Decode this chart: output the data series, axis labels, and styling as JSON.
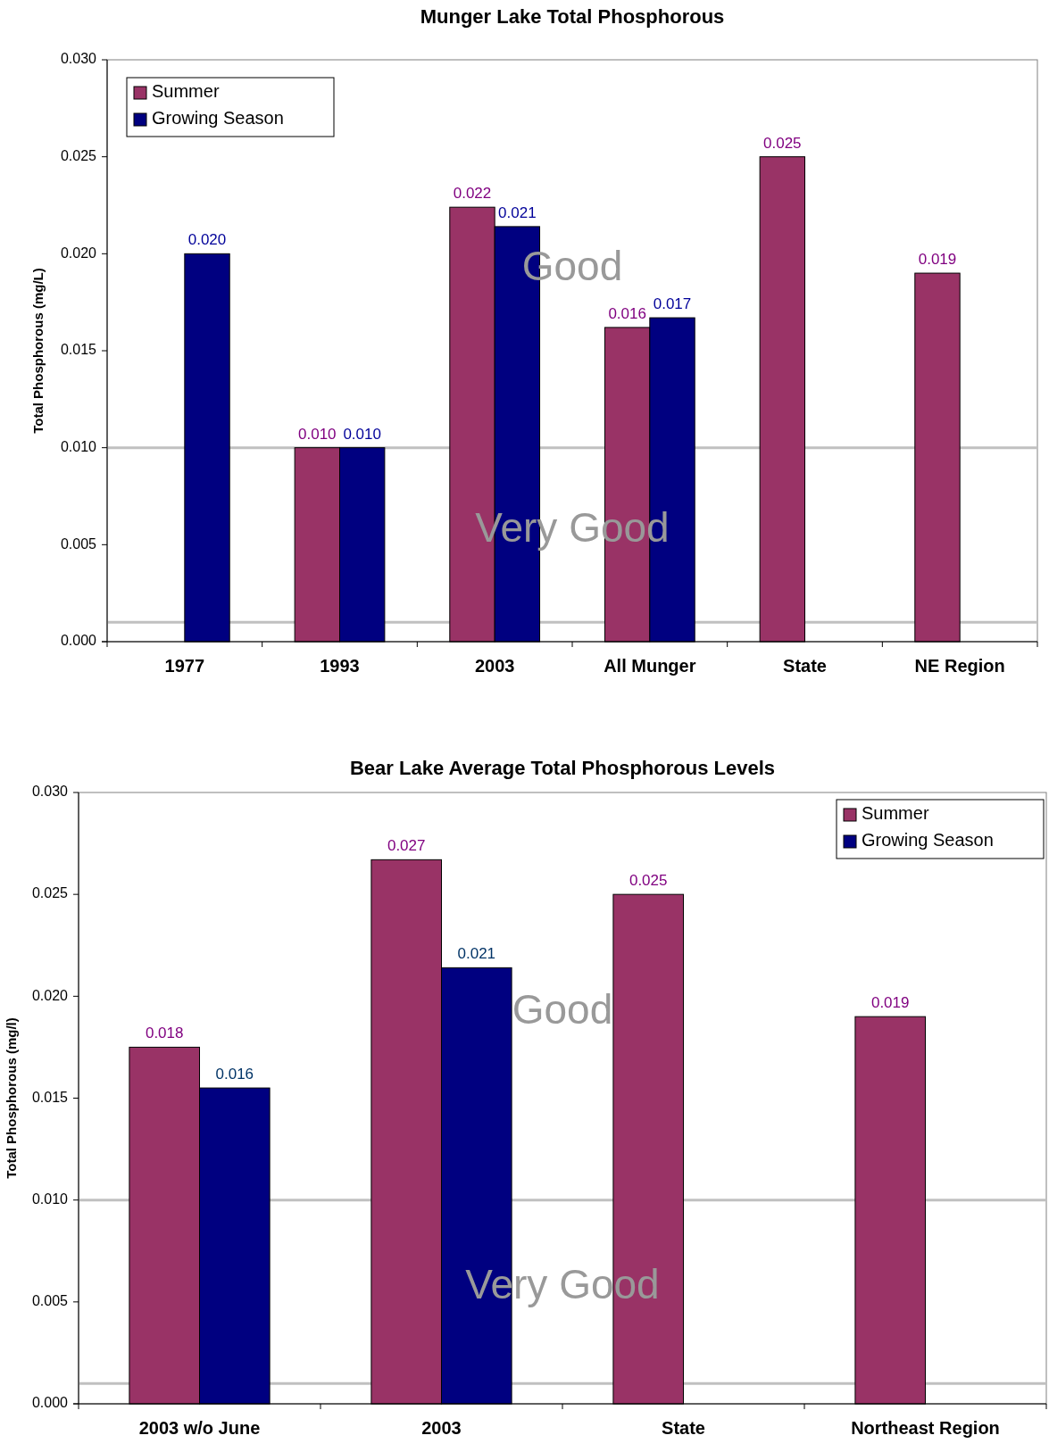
{
  "chart_data": [
    {
      "type": "bar",
      "title": "Munger Lake Total Phosphorous",
      "ylabel": "Total Phosphorous (mg/L)",
      "categories": [
        "1977",
        "1993",
        "2003",
        "All Munger",
        "State",
        "NE Region"
      ],
      "series": [
        {
          "name": "Summer",
          "color": "#993366",
          "values": [
            null,
            0.01,
            0.0224,
            0.0162,
            0.025,
            0.019
          ],
          "value_labels": [
            null,
            "0.010",
            "0.022",
            "0.016",
            "0.025",
            "0.019"
          ]
        },
        {
          "name": "Growing Season",
          "color": "#000080",
          "values": [
            0.02,
            0.01,
            0.0214,
            0.0167,
            null,
            null
          ],
          "value_labels": [
            "0.020",
            "0.010",
            "0.021",
            "0.017",
            null,
            null
          ]
        }
      ],
      "ylim": [
        0,
        0.03
      ],
      "yticks": [
        {
          "value": 0,
          "label": "0.000"
        },
        {
          "value": 0.005,
          "label": "0.005"
        },
        {
          "value": 0.01,
          "label": "0.010"
        },
        {
          "value": 0.015,
          "label": "0.015"
        },
        {
          "value": 0.02,
          "label": "0.020"
        },
        {
          "value": 0.025,
          "label": "0.025"
        },
        {
          "value": 0.03,
          "label": "0.030"
        }
      ],
      "ref_lines": [
        {
          "axis": "y",
          "value": 0.01,
          "color": "#c0c0c0"
        },
        {
          "axis": "y",
          "value": 0.001,
          "color": "#c0c0c0"
        }
      ],
      "annotations": [
        "Good",
        "Very Good"
      ],
      "legend": "top left",
      "grid": false
    },
    {
      "type": "bar",
      "title": "Bear Lake Average Total Phosphorous Levels",
      "ylabel": "Total Phosphorous (mg/l)",
      "categories": [
        "2003 w/o June",
        "2003",
        "State",
        "Northeast Region"
      ],
      "series": [
        {
          "name": "Summer",
          "color": "#993366",
          "values": [
            0.0175,
            0.0267,
            0.025,
            0.019
          ],
          "value_labels": [
            "0.018",
            "0.027",
            "0.025",
            "0.019"
          ]
        },
        {
          "name": "Growing Season",
          "color": "#000080",
          "values": [
            0.0155,
            0.0214,
            null,
            null
          ],
          "value_labels": [
            "0.016",
            "0.021",
            null,
            null
          ]
        }
      ],
      "ylim": [
        0,
        0.03
      ],
      "yticks": [
        {
          "value": 0,
          "label": "0.000"
        },
        {
          "value": 0.005,
          "label": "0.005"
        },
        {
          "value": 0.01,
          "label": "0.010"
        },
        {
          "value": 0.015,
          "label": "0.015"
        },
        {
          "value": 0.02,
          "label": "0.020"
        },
        {
          "value": 0.025,
          "label": "0.025"
        },
        {
          "value": 0.03,
          "label": "0.030"
        }
      ],
      "ref_lines": [
        {
          "axis": "y",
          "value": 0.01,
          "color": "#c0c0c0"
        },
        {
          "axis": "y",
          "value": 0.001,
          "color": "#c0c0c0"
        }
      ],
      "annotations": [
        "Good",
        "Very Good"
      ],
      "legend": "top right",
      "grid": false
    }
  ]
}
